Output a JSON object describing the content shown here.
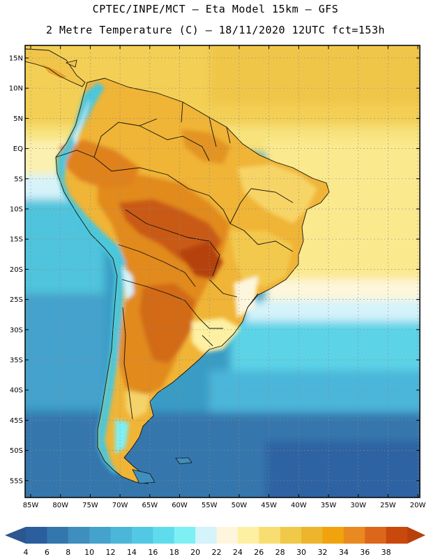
{
  "header": {
    "line1": "CPTEC/INPE/MCT –  Eta Model 15km – GFS",
    "line2": "2 Metre Temperature (C) – 18/11/2020 12UTC fct=153h"
  },
  "map": {
    "lat_labels": [
      "15N",
      "10N",
      "5N",
      "EQ",
      "5S",
      "10S",
      "15S",
      "20S",
      "25S",
      "30S",
      "35S",
      "40S",
      "45S",
      "50S",
      "55S"
    ],
    "lon_labels": [
      "85W",
      "80W",
      "75W",
      "70W",
      "65W",
      "60W",
      "55W",
      "50W",
      "45W",
      "40W",
      "35W",
      "30W",
      "25W",
      "20W"
    ],
    "ocean_color": "#3a9cc4",
    "land_colors": {
      "hot": "#c95a12",
      "warm": "#e7961f",
      "mild": "#f1c24a",
      "andes": "#48c7dd"
    }
  },
  "colorbar": {
    "labels": [
      "4",
      "6",
      "8",
      "10",
      "12",
      "14",
      "16",
      "18",
      "20",
      "22",
      "24",
      "26",
      "28",
      "30",
      "32",
      "34",
      "36",
      "38"
    ],
    "colors": [
      "#2a5e9c",
      "#3477ad",
      "#3e8ebe",
      "#45a2cc",
      "#4cb6d9",
      "#52c8e4",
      "#5edcec",
      "#7ef0f4",
      "#d4f3fa",
      "#fdf6dc",
      "#fdf0a2",
      "#f8de72",
      "#f1c949",
      "#ecb52c",
      "#f0a30c",
      "#e88a1f",
      "#dc661a",
      "#c9480c"
    ],
    "under_color": "#2b5690",
    "over_color": "#b8400c"
  }
}
